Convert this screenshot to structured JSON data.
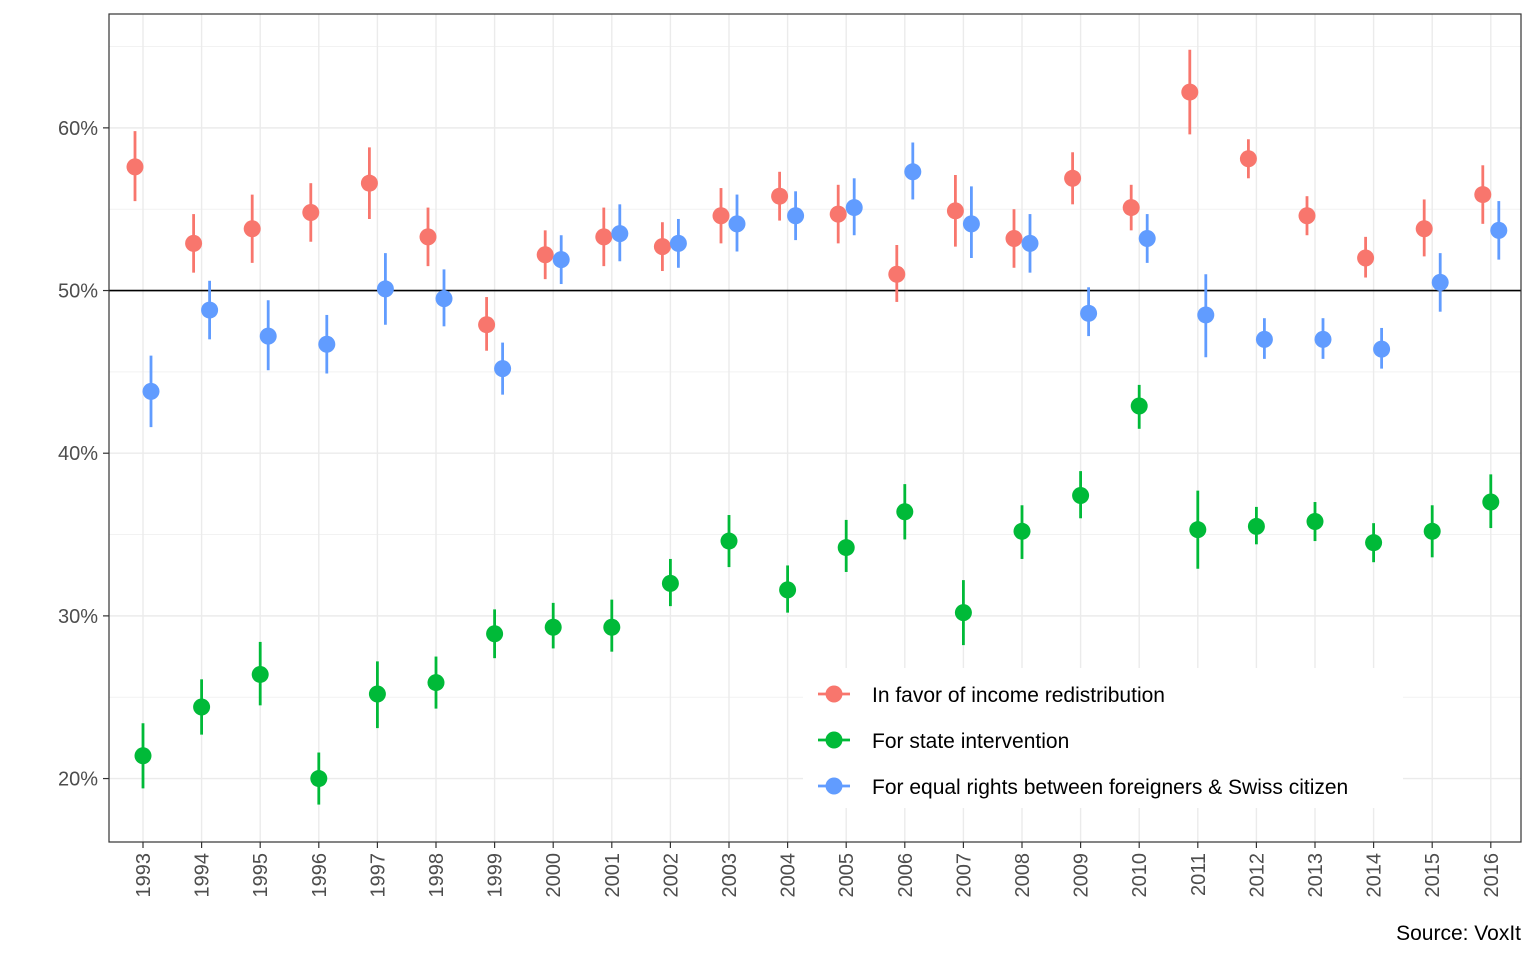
{
  "caption": "Source: VoxIt",
  "chart_data": {
    "type": "scatter",
    "subtype": "point-with-error-bars",
    "title": "",
    "xlabel": "",
    "ylabel": "",
    "grid": true,
    "legend_position": "inside-bottom-right",
    "x": [
      "1993",
      "1994",
      "1995",
      "1996",
      "1997",
      "1998",
      "1999",
      "2000",
      "2001",
      "2002",
      "2003",
      "2004",
      "2005",
      "2006",
      "2007",
      "2008",
      "2009",
      "2010",
      "2011",
      "2012",
      "2013",
      "2014",
      "2015",
      "2016"
    ],
    "ylim": [
      0.161,
      0.67
    ],
    "y_ticks": [
      0.2,
      0.3,
      0.4,
      0.5,
      0.6
    ],
    "y_tick_labels": [
      "20%",
      "30%",
      "40%",
      "50%",
      "60%"
    ],
    "reference_line": 0.5,
    "series": [
      {
        "name": "In favor of income redistribution",
        "color": "#F8766D",
        "x": [
          "1993",
          "1994",
          "1995",
          "1996",
          "1997",
          "1998",
          "1999",
          "2000",
          "2001",
          "2002",
          "2003",
          "2004",
          "2005",
          "2006",
          "2007",
          "2008",
          "2009",
          "2010",
          "2011",
          "2012",
          "2013",
          "2014",
          "2015",
          "2016"
        ],
        "values": [
          0.576,
          0.529,
          0.538,
          0.548,
          0.566,
          0.533,
          0.479,
          0.522,
          0.533,
          0.527,
          0.546,
          0.558,
          0.547,
          0.51,
          0.549,
          0.532,
          0.569,
          0.551,
          0.622,
          0.581,
          0.546,
          0.52,
          0.538,
          0.559
        ],
        "lower": [
          0.555,
          0.511,
          0.517,
          0.53,
          0.544,
          0.515,
          0.463,
          0.507,
          0.515,
          0.512,
          0.529,
          0.543,
          0.529,
          0.493,
          0.527,
          0.514,
          0.553,
          0.537,
          0.596,
          0.569,
          0.534,
          0.508,
          0.521,
          0.541
        ],
        "upper": [
          0.598,
          0.547,
          0.559,
          0.566,
          0.588,
          0.551,
          0.496,
          0.537,
          0.551,
          0.542,
          0.563,
          0.573,
          0.565,
          0.528,
          0.571,
          0.55,
          0.585,
          0.565,
          0.648,
          0.593,
          0.558,
          0.533,
          0.556,
          0.577
        ]
      },
      {
        "name": "For state intervention",
        "color": "#00BA38",
        "x": [
          "1993",
          "1994",
          "1995",
          "1996",
          "1997",
          "1998",
          "1999",
          "2000",
          "2001",
          "2002",
          "2003",
          "2004",
          "2005",
          "2006",
          "2007",
          "2008",
          "2009",
          "2010",
          "2011",
          "2012",
          "2013",
          "2014",
          "2015",
          "2016"
        ],
        "values": [
          0.214,
          0.244,
          0.264,
          0.2,
          0.252,
          0.259,
          0.289,
          0.293,
          0.293,
          0.32,
          0.346,
          0.316,
          0.342,
          0.364,
          0.302,
          0.352,
          0.374,
          0.429,
          0.353,
          0.355,
          0.358,
          0.345,
          0.352,
          0.37
        ],
        "lower": [
          0.194,
          0.227,
          0.245,
          0.184,
          0.231,
          0.243,
          0.274,
          0.28,
          0.278,
          0.306,
          0.33,
          0.302,
          0.327,
          0.347,
          0.282,
          0.335,
          0.36,
          0.415,
          0.329,
          0.344,
          0.346,
          0.333,
          0.336,
          0.354
        ],
        "upper": [
          0.234,
          0.261,
          0.284,
          0.216,
          0.272,
          0.275,
          0.304,
          0.308,
          0.31,
          0.335,
          0.362,
          0.331,
          0.359,
          0.381,
          0.322,
          0.368,
          0.389,
          0.442,
          0.377,
          0.367,
          0.37,
          0.357,
          0.368,
          0.387
        ]
      },
      {
        "name": "For equal rights between foreigners & Swiss citizen",
        "color": "#619CFF",
        "x": [
          "1993",
          "1994",
          "1995",
          "1996",
          "1997",
          "1998",
          "1999",
          "2000",
          "2001",
          "2002",
          "2003",
          "2004",
          "2005",
          "2006",
          "2007",
          "2008",
          "2009",
          "2010",
          "2011",
          "2012",
          "2013",
          "2014",
          "2015",
          "2016"
        ],
        "values": [
          0.438,
          0.488,
          0.472,
          0.467,
          0.501,
          0.495,
          0.452,
          0.519,
          0.535,
          0.529,
          0.541,
          0.546,
          0.551,
          0.573,
          0.541,
          0.529,
          0.486,
          0.532,
          0.485,
          0.47,
          0.47,
          0.464,
          0.505,
          0.537
        ],
        "lower": [
          0.416,
          0.47,
          0.451,
          0.449,
          0.479,
          0.478,
          0.436,
          0.504,
          0.518,
          0.514,
          0.524,
          0.531,
          0.534,
          0.556,
          0.52,
          0.511,
          0.472,
          0.517,
          0.459,
          0.458,
          0.458,
          0.452,
          0.487,
          0.519
        ],
        "upper": [
          0.46,
          0.506,
          0.494,
          0.485,
          0.523,
          0.513,
          0.468,
          0.534,
          0.553,
          0.544,
          0.559,
          0.561,
          0.569,
          0.591,
          0.564,
          0.547,
          0.502,
          0.547,
          0.51,
          0.483,
          0.483,
          0.477,
          0.523,
          0.555
        ]
      }
    ]
  }
}
